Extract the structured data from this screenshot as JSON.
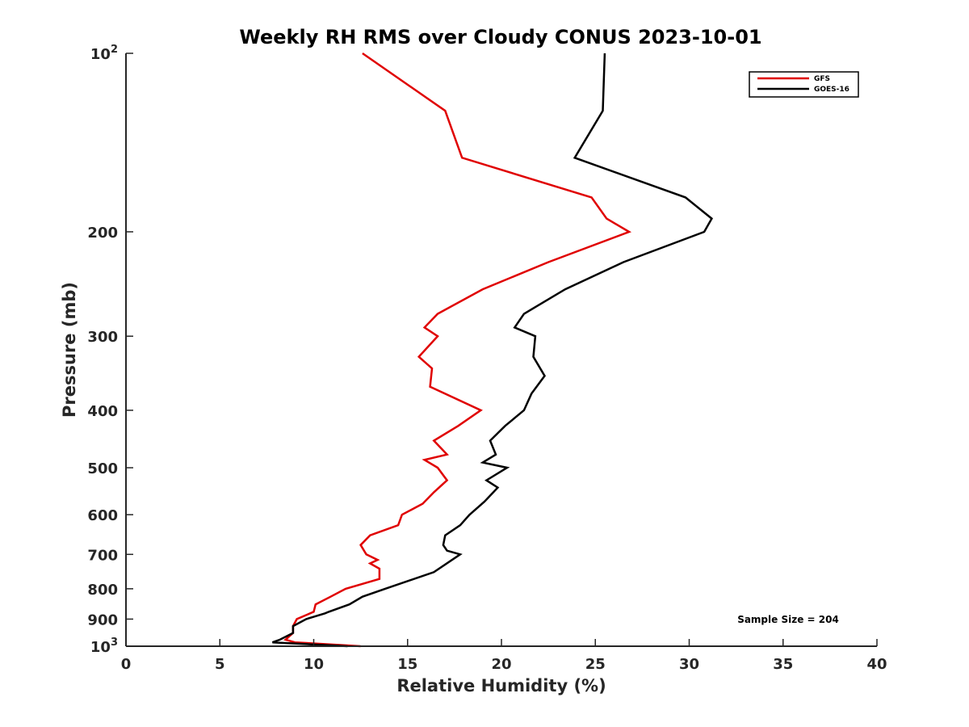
{
  "chart_data": {
    "type": "line",
    "title": "Weekly RH RMS over Cloudy CONUS 2023-10-01",
    "xlabel": "Relative Humidity (%)",
    "ylabel": "Pressure (mb)",
    "xlim": [
      0,
      40
    ],
    "ylim": [
      100,
      1000
    ],
    "yscale": "log",
    "y_reversed": true,
    "grid": false,
    "legend_position": "top-right",
    "x_ticks": [
      0,
      5,
      10,
      15,
      20,
      25,
      30,
      35,
      40
    ],
    "y_ticks": [
      {
        "value": 100,
        "base": "10",
        "exp": "2"
      },
      {
        "value": 200,
        "label": "200"
      },
      {
        "value": 300,
        "label": "300"
      },
      {
        "value": 400,
        "label": "400"
      },
      {
        "value": 500,
        "label": "500"
      },
      {
        "value": 600,
        "label": "600"
      },
      {
        "value": 700,
        "label": "700"
      },
      {
        "value": 800,
        "label": "800"
      },
      {
        "value": 900,
        "label": "900"
      },
      {
        "value": 1000,
        "base": "10",
        "exp": "3"
      }
    ],
    "series": [
      {
        "name": "GFS",
        "color": "#e00000",
        "points": [
          [
            12.6,
            100
          ],
          [
            17.0,
            125
          ],
          [
            17.9,
            150
          ],
          [
            24.8,
            175
          ],
          [
            25.6,
            190
          ],
          [
            26.8,
            200
          ],
          [
            22.5,
            225
          ],
          [
            19.0,
            250
          ],
          [
            16.6,
            275
          ],
          [
            15.9,
            290
          ],
          [
            16.6,
            300
          ],
          [
            15.6,
            325
          ],
          [
            16.3,
            340
          ],
          [
            16.2,
            365
          ],
          [
            18.9,
            400
          ],
          [
            17.7,
            425
          ],
          [
            16.4,
            450
          ],
          [
            17.1,
            475
          ],
          [
            15.9,
            485
          ],
          [
            16.6,
            500
          ],
          [
            17.1,
            525
          ],
          [
            16.4,
            550
          ],
          [
            15.8,
            575
          ],
          [
            14.7,
            600
          ],
          [
            14.5,
            625
          ],
          [
            13.0,
            650
          ],
          [
            12.5,
            675
          ],
          [
            12.8,
            700
          ],
          [
            13.4,
            715
          ],
          [
            13.0,
            725
          ],
          [
            13.5,
            740
          ],
          [
            13.5,
            770
          ],
          [
            11.7,
            800
          ],
          [
            10.9,
            825
          ],
          [
            10.1,
            850
          ],
          [
            10.0,
            875
          ],
          [
            9.1,
            900
          ],
          [
            8.9,
            925
          ],
          [
            8.9,
            950
          ],
          [
            8.5,
            975
          ],
          [
            9.0,
            985
          ],
          [
            12.5,
            1000
          ]
        ]
      },
      {
        "name": "GOES-16",
        "color": "#000000",
        "points": [
          [
            25.5,
            100
          ],
          [
            25.4,
            125
          ],
          [
            23.9,
            150
          ],
          [
            29.8,
            175
          ],
          [
            31.2,
            190
          ],
          [
            30.8,
            200
          ],
          [
            26.5,
            225
          ],
          [
            23.4,
            250
          ],
          [
            21.2,
            275
          ],
          [
            20.7,
            290
          ],
          [
            21.8,
            300
          ],
          [
            21.7,
            325
          ],
          [
            22.3,
            350
          ],
          [
            21.6,
            375
          ],
          [
            21.2,
            400
          ],
          [
            20.2,
            425
          ],
          [
            19.4,
            450
          ],
          [
            19.7,
            475
          ],
          [
            19.0,
            490
          ],
          [
            20.3,
            500
          ],
          [
            19.2,
            525
          ],
          [
            19.8,
            540
          ],
          [
            19.1,
            570
          ],
          [
            18.3,
            600
          ],
          [
            17.8,
            625
          ],
          [
            17.0,
            650
          ],
          [
            16.9,
            675
          ],
          [
            17.1,
            690
          ],
          [
            17.8,
            700
          ],
          [
            16.4,
            750
          ],
          [
            13.8,
            800
          ],
          [
            12.6,
            825
          ],
          [
            11.9,
            850
          ],
          [
            10.8,
            875
          ],
          [
            10.6,
            880
          ],
          [
            9.6,
            900
          ],
          [
            8.9,
            925
          ],
          [
            8.9,
            950
          ],
          [
            8.2,
            975
          ],
          [
            7.8,
            985
          ],
          [
            11.8,
            1000
          ]
        ]
      }
    ],
    "annotation": "Sample Size = 204"
  }
}
